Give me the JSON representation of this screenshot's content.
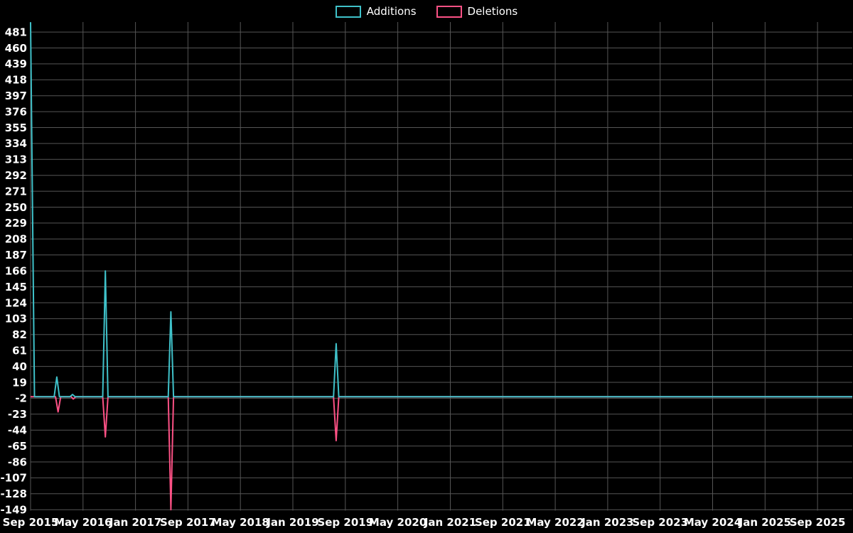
{
  "page": {
    "background_color": "#000000"
  },
  "chart_data": {
    "type": "line",
    "title": "",
    "legend_position": "top-center",
    "grid": true,
    "background": "#000000",
    "grid_color": "#555555",
    "text_color": "#ffffff",
    "x_axis": {
      "unit": "months-since-Sep-2015",
      "domain": [
        0,
        125.3
      ],
      "tick_positions": [
        0,
        8,
        16,
        24,
        32,
        40,
        48,
        56,
        64,
        72,
        80,
        88,
        96,
        104,
        112,
        120
      ],
      "tick_labels": [
        "Sep 2015",
        "May 2016",
        "Jan 2017",
        "Sep 2017",
        "May 2018",
        "Jan 2019",
        "Sep 2019",
        "May 2020",
        "Jan 2021",
        "Sep 2021",
        "May 2022",
        "Jan 2023",
        "Sep 2023",
        "May 2024",
        "Jan 2025",
        "Sep 2025"
      ],
      "tick_label_font_size": 15
    },
    "y_axis": {
      "domain": [
        -150.2,
        494.2
      ],
      "ticks": [
        481,
        460,
        439,
        418,
        397,
        376,
        355,
        334,
        313,
        292,
        271,
        250,
        229,
        208,
        187,
        166,
        145,
        124,
        103,
        82,
        61,
        40,
        19,
        -2,
        -23,
        -44,
        -65,
        -86,
        -107,
        -128,
        -149
      ],
      "tick_label_font_size": 15
    },
    "series": [
      {
        "name": "Additions",
        "color": "#3fc1c9",
        "line_width": 2,
        "points": [
          [
            0,
            494
          ],
          [
            0.6,
            0
          ],
          [
            3.6,
            0
          ],
          [
            4,
            26
          ],
          [
            4.4,
            0
          ],
          [
            6,
            0
          ],
          [
            6.4,
            3
          ],
          [
            6.8,
            0
          ],
          [
            11,
            0
          ],
          [
            11.4,
            166
          ],
          [
            11.8,
            0
          ],
          [
            21,
            0
          ],
          [
            21.4,
            112
          ],
          [
            21.8,
            0
          ],
          [
            46.2,
            0
          ],
          [
            46.6,
            70
          ],
          [
            47,
            0
          ],
          [
            125.3,
            0
          ]
        ]
      },
      {
        "name": "Deletions",
        "color": "#fc5185",
        "line_width": 2,
        "points": [
          [
            0,
            0
          ],
          [
            3.8,
            0
          ],
          [
            4.2,
            -20
          ],
          [
            4.6,
            0
          ],
          [
            6.2,
            0
          ],
          [
            6.5,
            -3
          ],
          [
            6.9,
            0
          ],
          [
            11,
            0
          ],
          [
            11.4,
            -53
          ],
          [
            11.8,
            0
          ],
          [
            21,
            0
          ],
          [
            21.4,
            -149
          ],
          [
            21.8,
            0
          ],
          [
            46.2,
            0
          ],
          [
            46.6,
            -58
          ],
          [
            47,
            0
          ],
          [
            125.3,
            0
          ]
        ]
      }
    ]
  }
}
